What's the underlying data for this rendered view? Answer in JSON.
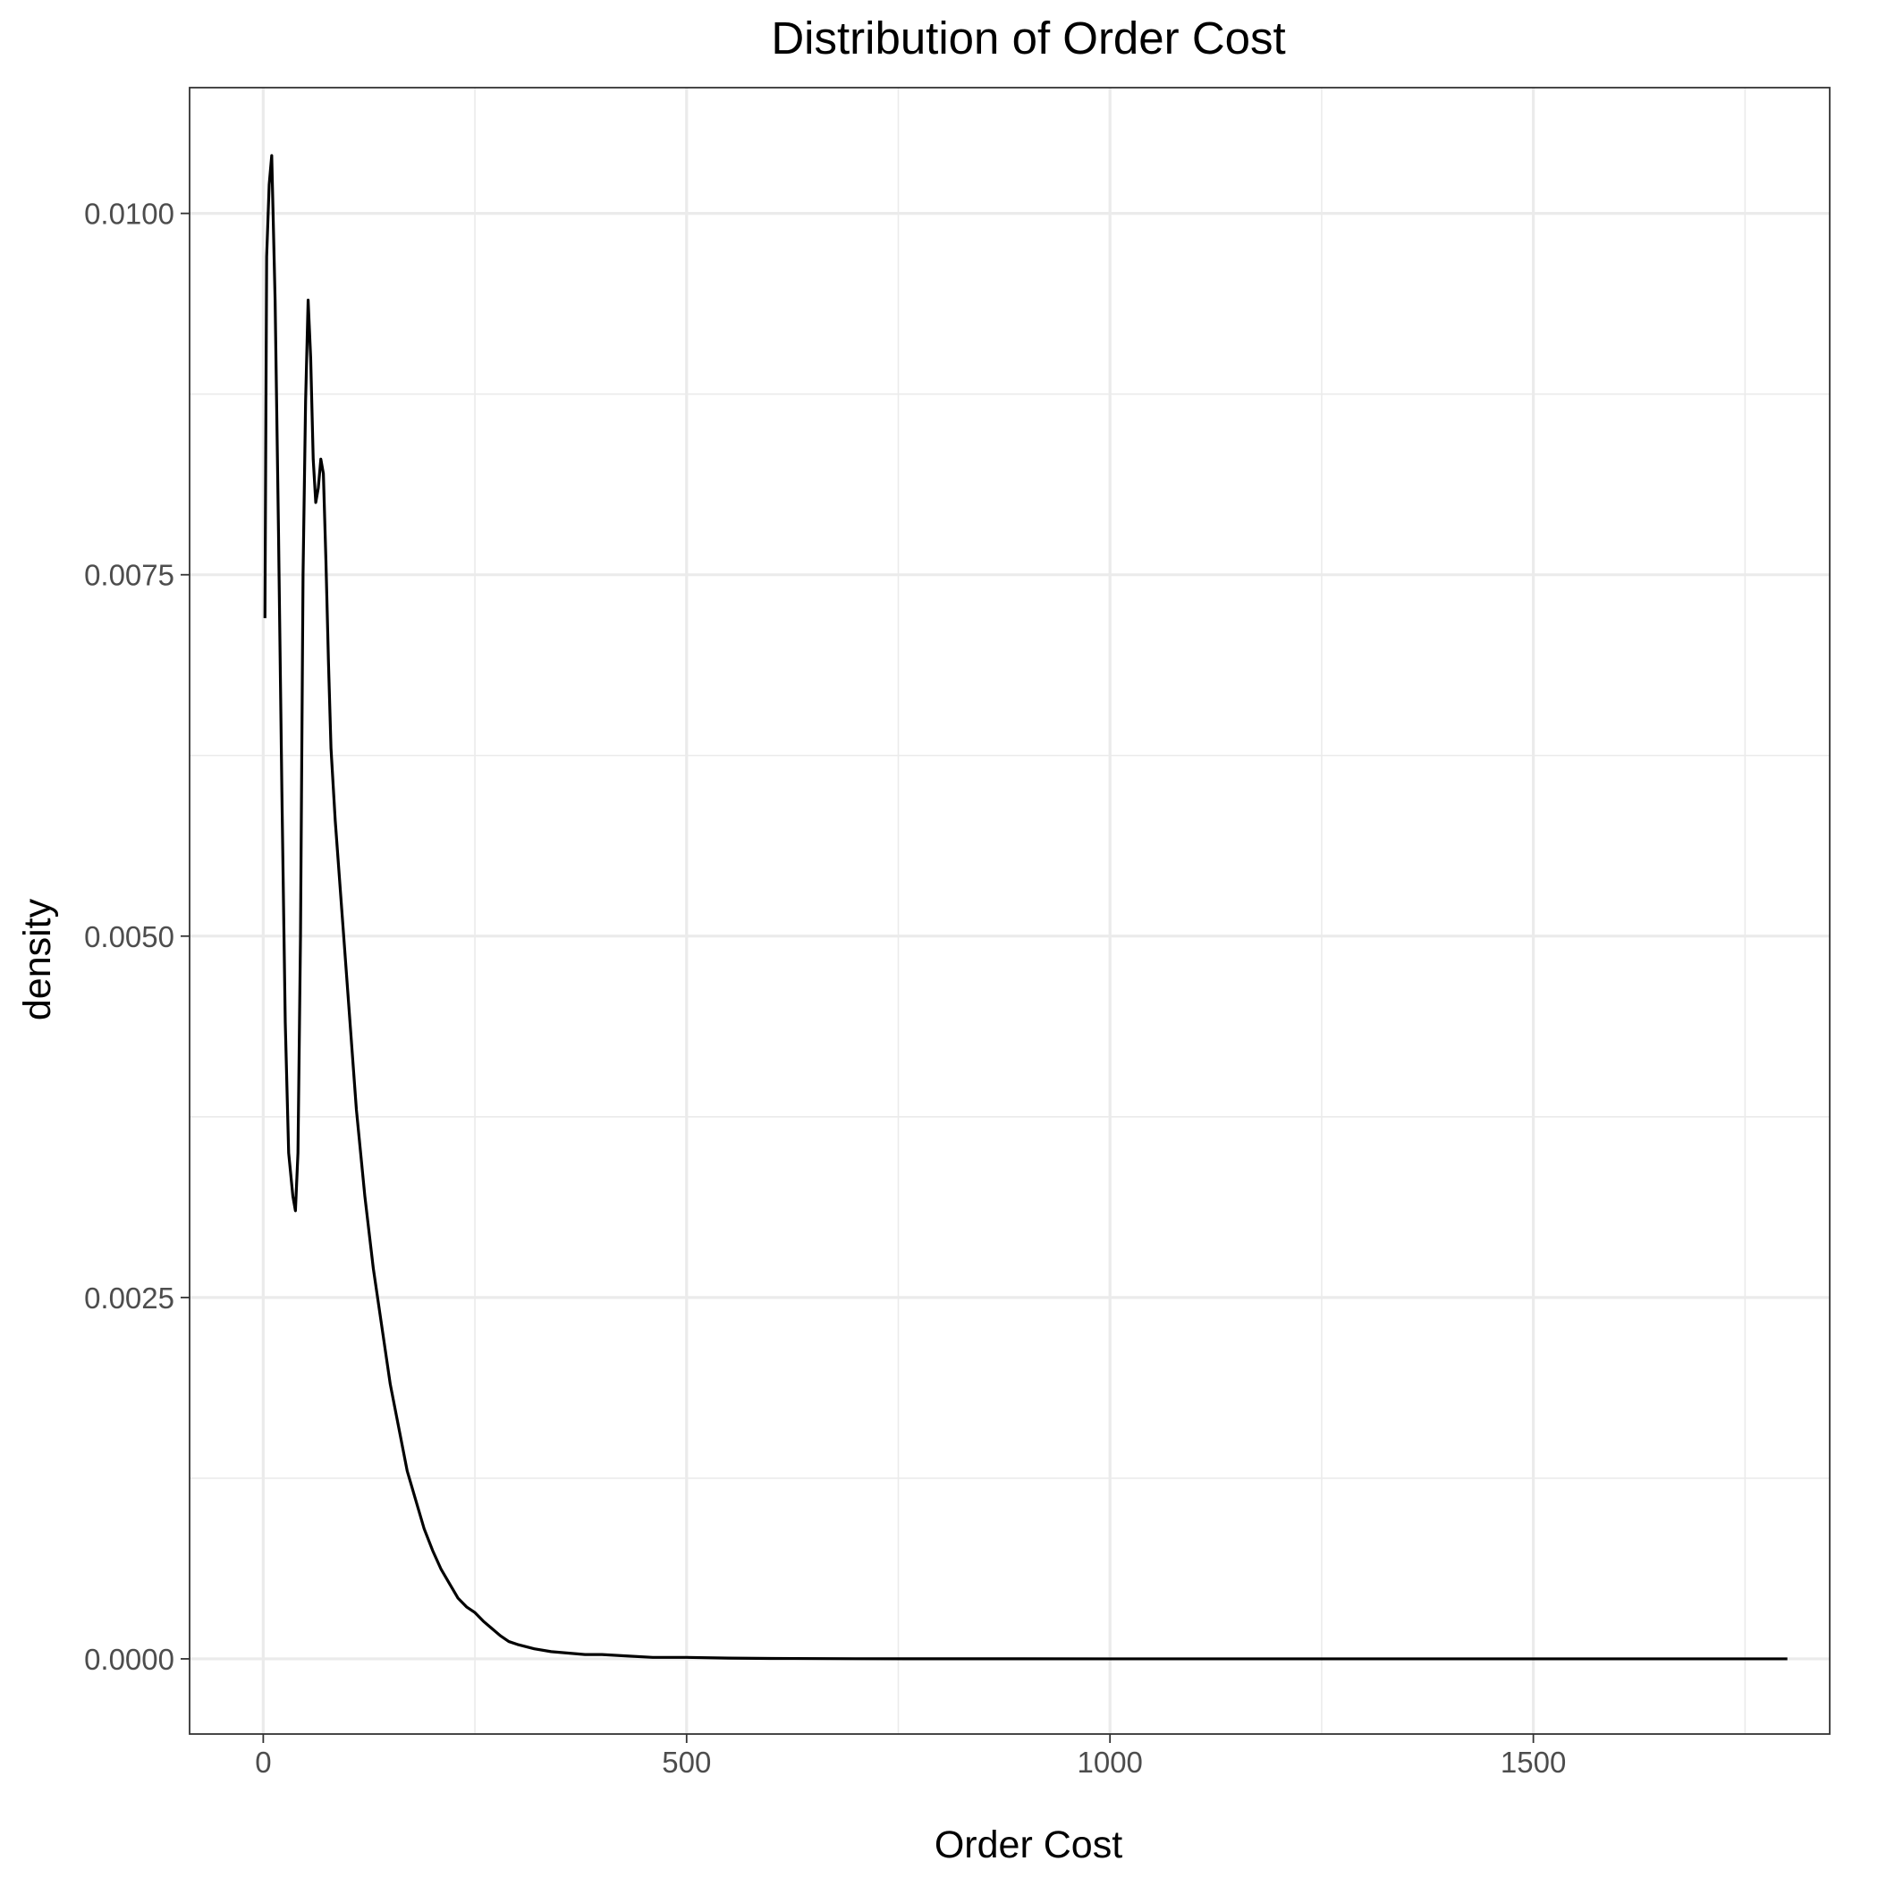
{
  "chart_data": {
    "type": "line",
    "title": "Distribution of Order Cost",
    "xlabel": "Order Cost",
    "ylabel": "density",
    "xlim": [
      -87,
      1850
    ],
    "ylim": [
      -0.00052,
      0.01087
    ],
    "x_ticks": [
      0,
      500,
      1000,
      1500
    ],
    "x_tick_labels": [
      "0",
      "500",
      "1000",
      "1500"
    ],
    "x_minor": [
      250,
      750,
      1250,
      1750
    ],
    "y_ticks": [
      0.0,
      0.0025,
      0.005,
      0.0075,
      0.01
    ],
    "y_tick_labels": [
      "0.0000",
      "0.0025",
      "0.0050",
      "0.0075",
      "0.0100"
    ],
    "y_minor": [
      0.00125,
      0.00375,
      0.00625,
      0.00875
    ],
    "grid": true,
    "legend": "none",
    "colors": {
      "line": "#000000",
      "grid": "#ebebeb",
      "panel_border": "#333333",
      "background": "#ffffff"
    },
    "series": [
      {
        "x": [
          2,
          4,
          7,
          10,
          14,
          18,
          22,
          26,
          30,
          35,
          38,
          41,
          44,
          47,
          50,
          53,
          56,
          59,
          62,
          65,
          68,
          71,
          74,
          77,
          80,
          85,
          90,
          100,
          110,
          120,
          130,
          140,
          150,
          160,
          170,
          180,
          190,
          200,
          210,
          220,
          230,
          240,
          250,
          260,
          270,
          280,
          290,
          300,
          320,
          340,
          360,
          380,
          400,
          430,
          460,
          500,
          550,
          600,
          700,
          800,
          1000,
          1200,
          1500,
          1800
        ],
        "y": [
          0.0072,
          0.0097,
          0.0102,
          0.0104,
          0.0094,
          0.0078,
          0.006,
          0.0044,
          0.0035,
          0.0032,
          0.0031,
          0.0035,
          0.005,
          0.0075,
          0.0087,
          0.0094,
          0.009,
          0.0083,
          0.008,
          0.0081,
          0.0083,
          0.0082,
          0.0076,
          0.0069,
          0.0063,
          0.0058,
          0.0054,
          0.0046,
          0.0038,
          0.0032,
          0.0027,
          0.0023,
          0.0019,
          0.0016,
          0.0013,
          0.0011,
          0.0009,
          0.00075,
          0.00062,
          0.00052,
          0.00042,
          0.00036,
          0.00032,
          0.00026,
          0.00021,
          0.00016,
          0.00012,
          0.0001,
          7e-05,
          5e-05,
          4e-05,
          3e-05,
          3e-05,
          2e-05,
          1e-05,
          1e-05,
          5e-06,
          3e-06,
          1e-06,
          5e-07,
          0.0,
          0.0,
          0.0,
          0.0
        ]
      }
    ]
  }
}
